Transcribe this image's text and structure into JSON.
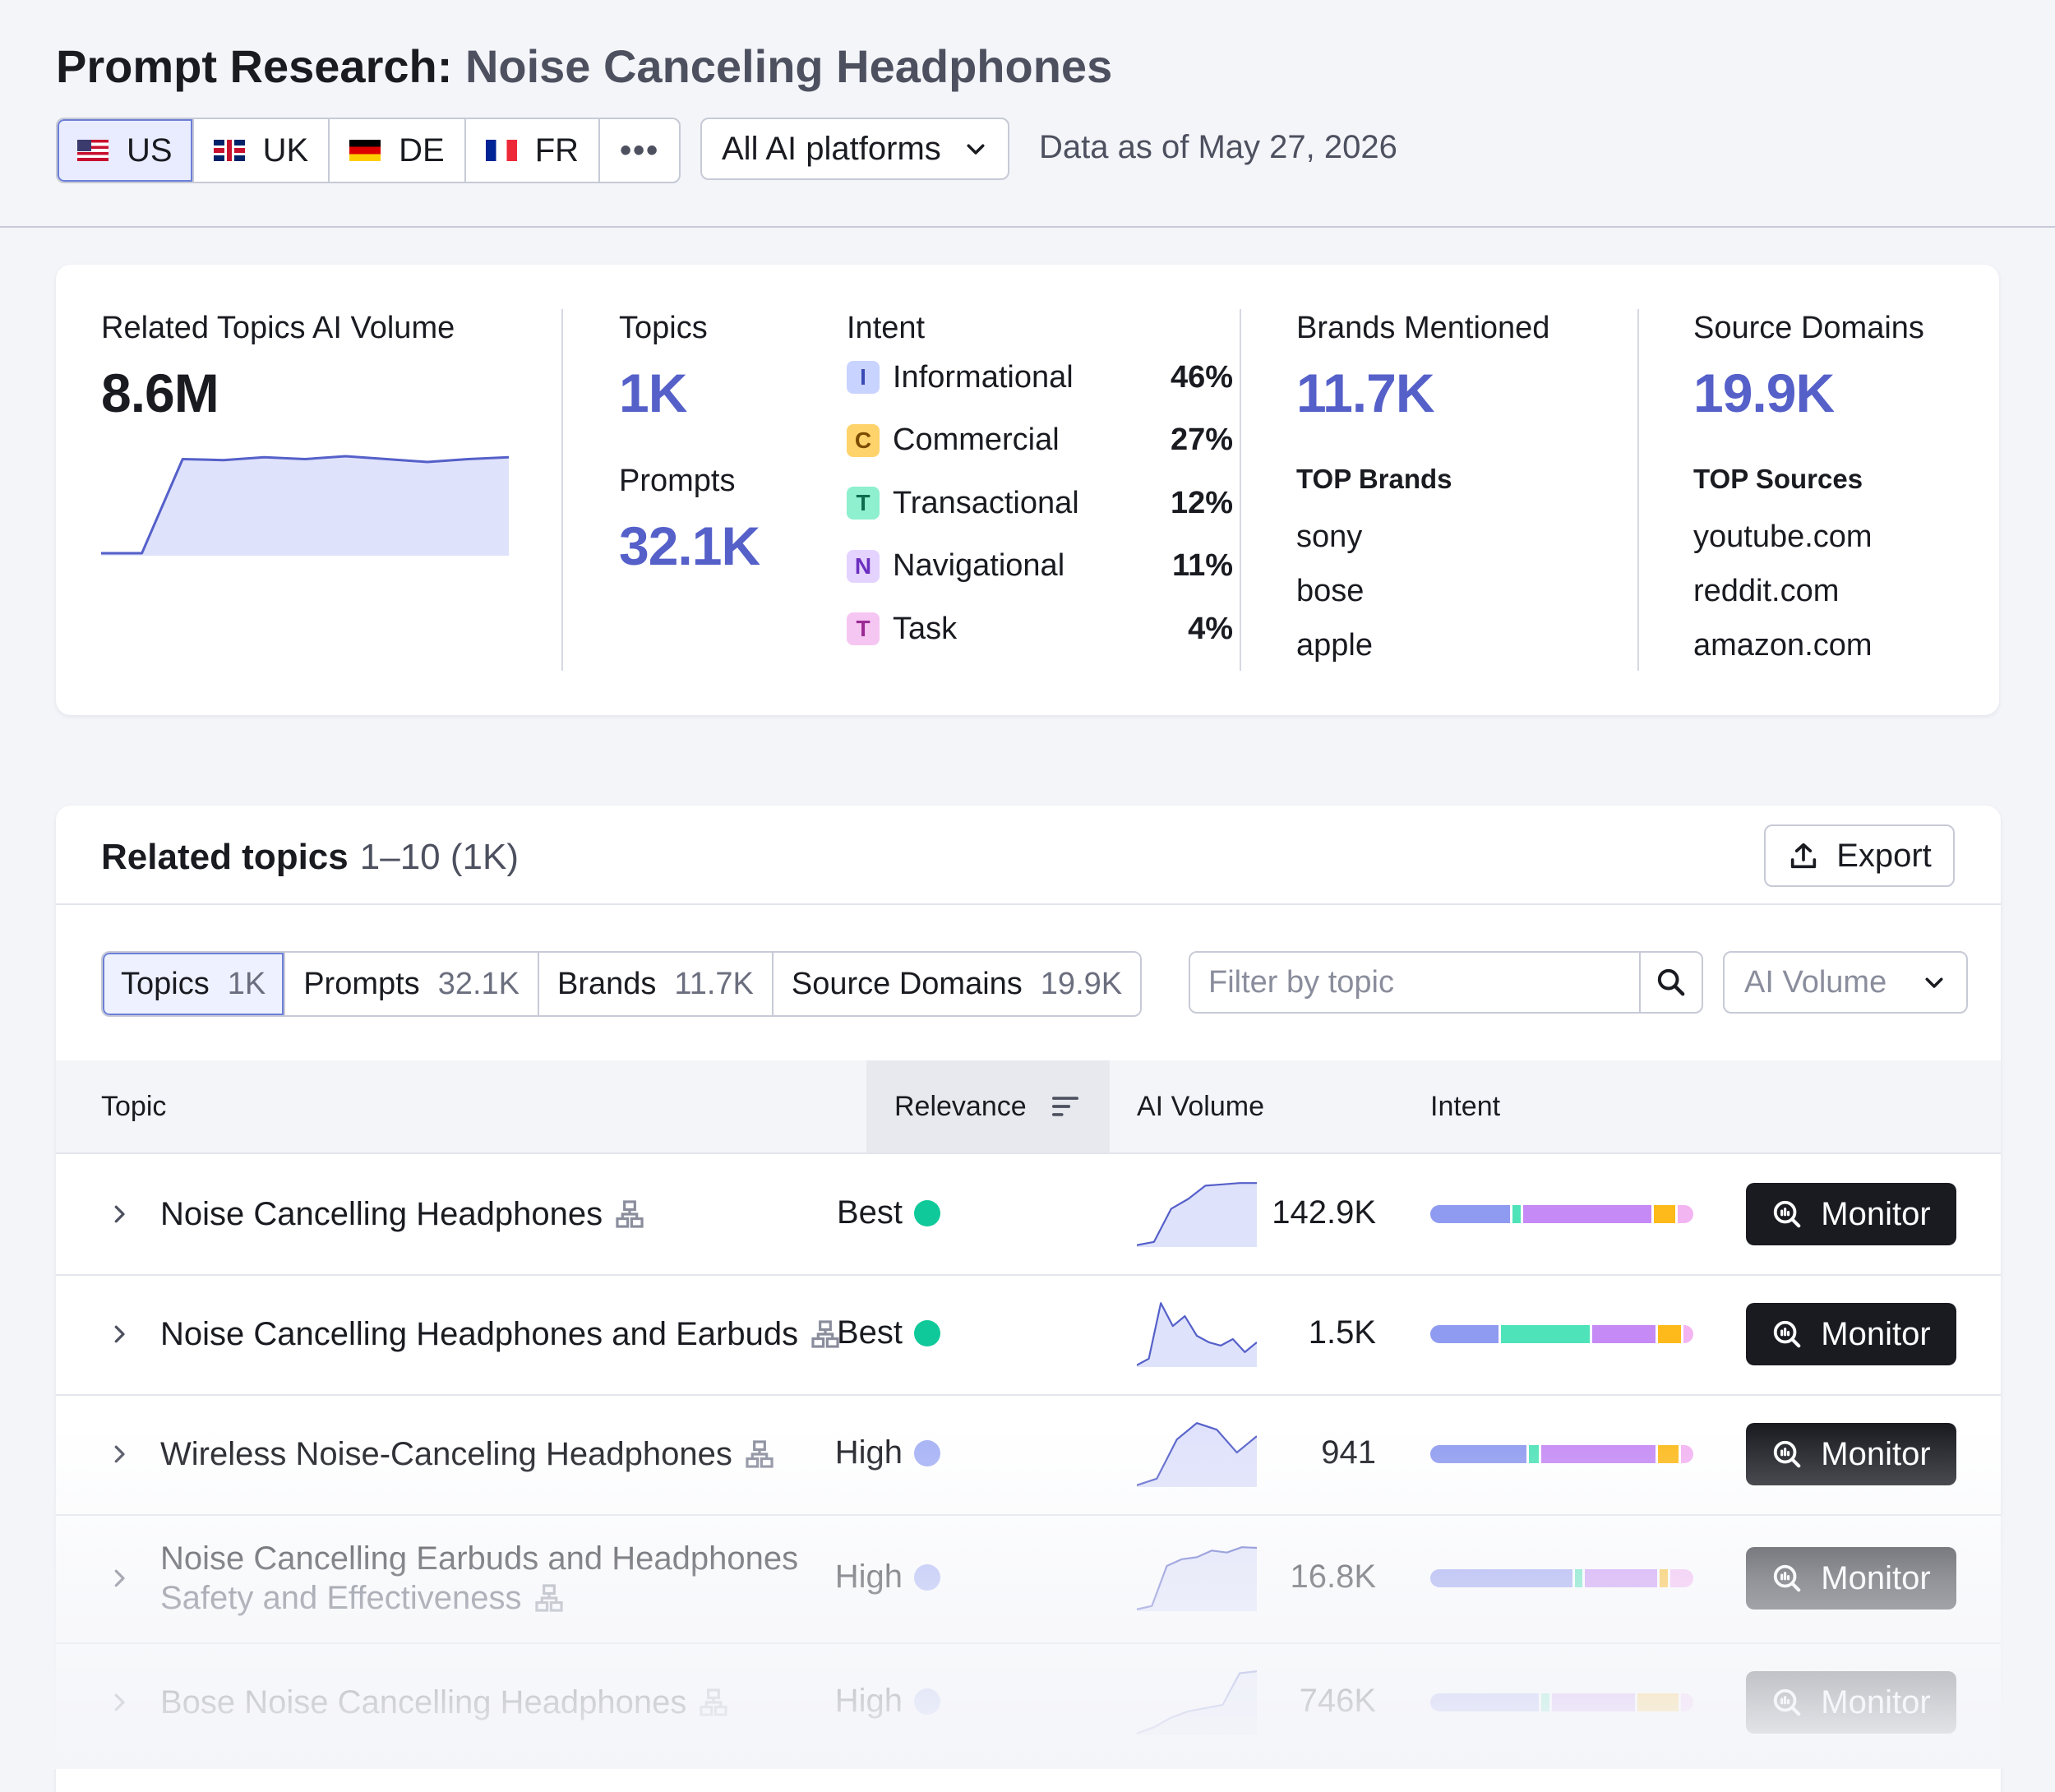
{
  "header": {
    "title_prefix": "Prompt Research:",
    "title_keyword": "Noise Canceling Headphones",
    "databases": [
      {
        "code": "US",
        "flag": "flag-us",
        "active": true
      },
      {
        "code": "UK",
        "flag": "flag-uk"
      },
      {
        "code": "DE",
        "flag": "flag-de"
      },
      {
        "code": "FR",
        "flag": "flag-fr"
      }
    ],
    "more_icon": "more-horizontal-icon",
    "platform_select": "All AI platforms",
    "data_as_of": "Data as of May 27, 2026"
  },
  "summary": {
    "ai_volume": {
      "label": "Related Topics AI Volume",
      "value": "8.6M",
      "trend": [
        0,
        0,
        0.98,
        0.97,
        1.0,
        0.98,
        1.01,
        0.98,
        0.95,
        0.98,
        1.0
      ]
    },
    "topics": {
      "label": "Topics",
      "value": "1K"
    },
    "prompts": {
      "label": "Prompts",
      "value": "32.1K"
    },
    "intent": {
      "label": "Intent",
      "items": [
        {
          "letter": "I",
          "name": "Informational",
          "pct": "46%",
          "bg": "#c9d3ff",
          "fg": "#3b4bb5"
        },
        {
          "letter": "C",
          "name": "Commercial",
          "pct": "27%",
          "bg": "#ffd36b",
          "fg": "#7a4b00"
        },
        {
          "letter": "T",
          "name": "Transactional",
          "pct": "12%",
          "bg": "#8ef0cf",
          "fg": "#0e6b4e"
        },
        {
          "letter": "N",
          "name": "Navigational",
          "pct": "11%",
          "bg": "#e4d3ff",
          "fg": "#6b2fbf"
        },
        {
          "letter": "T",
          "name": "Task",
          "pct": "4%",
          "bg": "#f6c6f3",
          "fg": "#9b2a94"
        }
      ]
    },
    "brands": {
      "label": "Brands Mentioned",
      "value": "11.7K",
      "top_label": "TOP Brands",
      "top": [
        "sony",
        "bose",
        "apple"
      ]
    },
    "sources": {
      "label": "Source Domains",
      "value": "19.9K",
      "top_label": "TOP Sources",
      "top": [
        "youtube.com",
        "reddit.com",
        "amazon.com"
      ]
    }
  },
  "related": {
    "title": "Related topics",
    "range": "1–10 (1K)",
    "export_label": "Export",
    "tabs": [
      {
        "label": "Topics",
        "count": "1K",
        "active": true
      },
      {
        "label": "Prompts",
        "count": "32.1K"
      },
      {
        "label": "Brands",
        "count": "11.7K"
      },
      {
        "label": "Source Domains",
        "count": "19.9K"
      }
    ],
    "filter_placeholder": "Filter by topic",
    "sort_select": "AI Volume",
    "columns": {
      "topic": "Topic",
      "relevance": "Relevance",
      "ai_volume": "AI Volume",
      "intent": "Intent"
    },
    "monitor_label": "Monitor",
    "rows": [
      {
        "topic": [
          "Noise Cancelling Headphones"
        ],
        "relevance": "Best",
        "rel_color": "#10c99a",
        "volume": "142.9K",
        "trend": [
          0,
          0.05,
          0.55,
          0.7,
          0.9,
          0.92,
          0.94,
          0.94
        ],
        "intent": [
          {
            "v": 30,
            "c": "#8f9bf0"
          },
          {
            "v": 3,
            "c": "#4ee3b8"
          },
          {
            "v": 48,
            "c": "#c58af5"
          },
          {
            "v": 8,
            "c": "#fdba1a"
          },
          {
            "v": 6,
            "c": "#f3b4f2"
          }
        ]
      },
      {
        "topic": [
          "Noise Cancelling Headphones and Earbuds"
        ],
        "relevance": "Best",
        "rel_color": "#10c99a",
        "volume": "1.5K",
        "trend": [
          0,
          0.1,
          0.95,
          0.6,
          0.75,
          0.45,
          0.35,
          0.3,
          0.4,
          0.2,
          0.35
        ],
        "intent": [
          {
            "v": 27,
            "c": "#8f9bf0"
          },
          {
            "v": 35,
            "c": "#4ee3b8"
          },
          {
            "v": 25,
            "c": "#c58af5"
          },
          {
            "v": 9,
            "c": "#fdba1a"
          },
          {
            "v": 4,
            "c": "#f3b4f2"
          }
        ]
      },
      {
        "topic": [
          "Wireless Noise-Canceling Headphones"
        ],
        "relevance": "High",
        "rel_color": "#a5b1f5",
        "volume": "941",
        "trend": [
          0,
          0.1,
          0.7,
          0.95,
          0.85,
          0.5,
          0.75
        ],
        "intent": [
          {
            "v": 38,
            "c": "#8f9bf0"
          },
          {
            "v": 4,
            "c": "#4ee3b8"
          },
          {
            "v": 45,
            "c": "#c58af5"
          },
          {
            "v": 8,
            "c": "#fdba1a"
          },
          {
            "v": 5,
            "c": "#f3b4f2"
          }
        ]
      },
      {
        "topic": [
          "Noise Cancelling Earbuds and Headphones",
          "Safety and Effectiveness"
        ],
        "relevance": "High",
        "rel_color": "#a5b1f5",
        "volume": "16.8K",
        "trend": [
          0,
          0.05,
          0.65,
          0.75,
          0.78,
          0.88,
          0.85,
          0.93,
          0.92
        ],
        "intent": [
          {
            "v": 55,
            "c": "#8f9bf0"
          },
          {
            "v": 3,
            "c": "#4ee3b8"
          },
          {
            "v": 28,
            "c": "#c58af5"
          },
          {
            "v": 3,
            "c": "#fdba1a"
          },
          {
            "v": 9,
            "c": "#f3b4f2"
          }
        ]
      },
      {
        "topic": [
          "Bose Noise Cancelling Headphones"
        ],
        "relevance": "High",
        "rel_color": "#a5b1f5",
        "volume": "746K",
        "trend": [
          0,
          0.1,
          0.25,
          0.35,
          0.4,
          0.45,
          0.95,
          0.98
        ],
        "intent": [
          {
            "v": 43,
            "c": "#8f9bf0"
          },
          {
            "v": 3,
            "c": "#4ee3b8"
          },
          {
            "v": 33,
            "c": "#c58af5"
          },
          {
            "v": 16,
            "c": "#fdba1a"
          },
          {
            "v": 5,
            "c": "#f3b4f2"
          }
        ]
      }
    ]
  }
}
